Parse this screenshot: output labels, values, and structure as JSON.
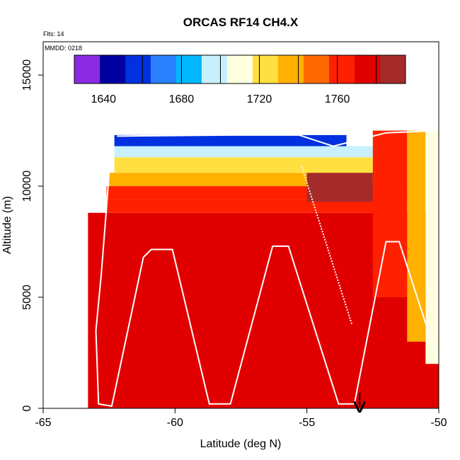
{
  "chart_data": {
    "type": "heatmap",
    "title": "ORCAS RF14 CH4.X",
    "corner_labels": {
      "flights": "Flts: 14",
      "date": "MMDD: 0218"
    },
    "xlabel": "Latitude (deg N)",
    "ylabel": "Altitude (m)",
    "xlim": [
      -65,
      -50
    ],
    "ylim": [
      0,
      16500
    ],
    "x_ticks": [
      -65,
      -60,
      -55,
      -50
    ],
    "x_tick_labels": [
      "-65",
      "-60",
      "-55",
      "-50"
    ],
    "y_ticks": [
      0,
      5000,
      10000,
      15000
    ],
    "y_tick_labels": [
      "0",
      "5000",
      "10000",
      "15000"
    ],
    "colorbar": {
      "range": [
        1625,
        1795
      ],
      "ticks": [
        1640,
        1680,
        1720,
        1760
      ],
      "tick_labels": [
        "1640",
        "1680",
        "1720",
        "1760"
      ],
      "divisions": [
        1660,
        1680,
        1700,
        1720,
        1740,
        1760,
        1780
      ],
      "colors": [
        "#8a2be2",
        "#0000a0",
        "#0030e0",
        "#2a80ff",
        "#00b8ff",
        "#c8f0ff",
        "#ffffe0",
        "#ffe040",
        "#ffb000",
        "#ff6a00",
        "#ff2000",
        "#e00000",
        "#a52a2a"
      ]
    },
    "colors": {
      "background_fill": "#ff1a00",
      "track": "#ffffff",
      "marker": "#000000"
    },
    "cross_section_cells": [
      {
        "lat_range": [
          -63.3,
          -50
        ],
        "alt_range": [
          0,
          8800
        ],
        "value": 1778
      },
      {
        "lat_range": [
          -62.5,
          -53
        ],
        "alt_range": [
          5500,
          7200
        ],
        "value": 1781
      },
      {
        "lat_range": [
          -62.6,
          -51.8
        ],
        "alt_range": [
          8800,
          9400
        ],
        "value": 1768
      },
      {
        "lat_range": [
          -62.6,
          -51.2
        ],
        "alt_range": [
          9400,
          10000
        ],
        "value": 1756
      },
      {
        "lat_range": [
          -62.5,
          -51.5
        ],
        "alt_range": [
          10000,
          10600
        ],
        "value": 1740
      },
      {
        "lat_range": [
          -62.3,
          -51.8
        ],
        "alt_range": [
          10600,
          11300
        ],
        "value": 1722
      },
      {
        "lat_range": [
          -62.3,
          -52.5
        ],
        "alt_range": [
          11300,
          11800
        ],
        "value": 1700
      },
      {
        "lat_range": [
          -62.3,
          -53.5
        ],
        "alt_range": [
          11800,
          12300
        ],
        "value": 1660
      },
      {
        "lat_range": [
          -55,
          -52.5
        ],
        "alt_range": [
          9300,
          10600
        ],
        "value": 1788
      },
      {
        "lat_range": [
          -52.5,
          -51.2
        ],
        "alt_range": [
          5000,
          12500
        ],
        "value": 1760
      },
      {
        "lat_range": [
          -51.2,
          -50.5
        ],
        "alt_range": [
          3000,
          12500
        ],
        "value": 1740
      },
      {
        "lat_range": [
          -50.5,
          -50
        ],
        "alt_range": [
          2000,
          12500
        ],
        "value": 1715
      }
    ],
    "flight_track": [
      {
        "lat": -62.4,
        "alt": 12300
      },
      {
        "lat": -62.6,
        "alt": 9000
      },
      {
        "lat": -62.8,
        "alt": 6000
      },
      {
        "lat": -63.0,
        "alt": 3500
      },
      {
        "lat": -62.9,
        "alt": 200
      },
      {
        "lat": -62.4,
        "alt": 100
      },
      {
        "lat": -61.2,
        "alt": 6800
      },
      {
        "lat": -60.9,
        "alt": 7150
      },
      {
        "lat": -60.1,
        "alt": 7150
      },
      {
        "lat": -58.7,
        "alt": 200
      },
      {
        "lat": -57.9,
        "alt": 200
      },
      {
        "lat": -56.3,
        "alt": 7300
      },
      {
        "lat": -55.7,
        "alt": 7300
      },
      {
        "lat": -53.8,
        "alt": 200
      },
      {
        "lat": -53.2,
        "alt": 200
      },
      {
        "lat": -52.0,
        "alt": 7500
      },
      {
        "lat": -51.5,
        "alt": 7500
      },
      {
        "lat": -50.0,
        "alt": 2000
      }
    ],
    "upper_track": [
      {
        "lat": -62.2,
        "alt": 12250
      },
      {
        "lat": -58,
        "alt": 12300
      },
      {
        "lat": -55.3,
        "alt": 12300
      },
      {
        "lat": -54.0,
        "alt": 11800
      },
      {
        "lat": -52.0,
        "alt": 12400
      },
      {
        "lat": -50.0,
        "alt": 12500
      }
    ],
    "descent_trace": [
      {
        "lat": -55.2,
        "alt": 10900
      },
      {
        "lat": -53.3,
        "alt": 3800
      }
    ],
    "marker_lat": -53,
    "legend": "none",
    "grid": false
  }
}
